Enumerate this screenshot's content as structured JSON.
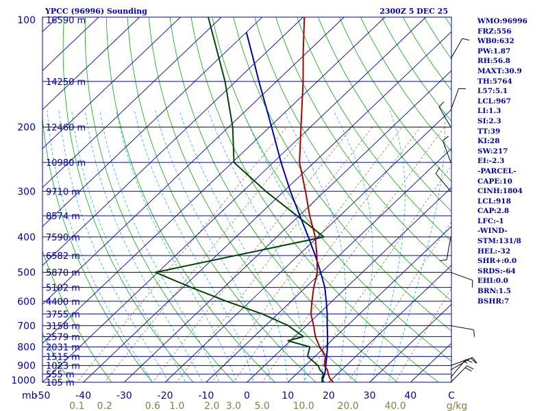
{
  "header": {
    "title": "YPCC (96996) Sounding",
    "time": "2300Z  5 DEC 25"
  },
  "indices": [
    "WMO:96996",
    "FRZ:556",
    "WB0:632",
    "PW:1.87",
    "RH:56.8",
    "MAXT:30.9",
    "TH:5764",
    "L57:5.1",
    "LCL:967",
    "LI:1.3",
    "SI:2.3",
    "TT:39",
    "KI:28",
    "SW:217",
    "EI:-2.3",
    "-PARCEL-",
    "CAPE:10",
    "CINH:1804",
    "LCL:918",
    "CAP:2.8",
    "LFC:-1",
    "-WIND-",
    "STM:131/8",
    "HEL:-32",
    "SHR+:0.0",
    "SRDS:-64",
    "EHI:0.0",
    "BRN:1.5",
    "BSHR:7"
  ],
  "colors": {
    "background": "#ffffff",
    "label_text": "#0000aa",
    "isobar": "#0000aa",
    "isotherm": "#0000aa",
    "dry_adiabat": "#00aa00",
    "moist_adiabat": "#22aaee",
    "mixing_ratio": "#808040",
    "temperature": "#aa0000",
    "dewpoint": "#004400",
    "parcel": "#0000aa",
    "wind_barb": "#000000",
    "mixing_ratio_label": "#808040"
  },
  "chart_data": {
    "type": "skew-t log-p sounding",
    "y_axis": {
      "unit": "mb",
      "range": [
        1000,
        100
      ],
      "scale": "log",
      "tick_labels": [
        "100",
        "200",
        "300",
        "400",
        "500",
        "600",
        "700",
        "800",
        "900",
        "1000"
      ]
    },
    "x_axis": {
      "unit": "C",
      "range": [
        -50,
        50
      ],
      "tick_values": [
        -50,
        -40,
        -30,
        -20,
        -10,
        0,
        10,
        20,
        30,
        40
      ],
      "tick_labels": [
        "-50",
        "-40",
        "-30",
        "-20",
        "-10",
        "0",
        "10",
        "20",
        "30",
        "40"
      ],
      "unit_label": "C",
      "pressure_unit_label": "mb"
    },
    "mixing_ratio_axis": {
      "unit": "g/kg",
      "values": [
        0.1,
        0.2,
        0.6,
        1.0,
        2.0,
        3.0,
        5.0,
        10.0,
        20.0,
        40.0
      ],
      "labels": [
        "0.1",
        "0.2",
        "0.6",
        "1.0",
        "2.0",
        "3.0",
        "5.0",
        "10.0",
        "20.0",
        "40.0"
      ]
    },
    "height_levels": [
      {
        "p": 100,
        "label": "16590 m"
      },
      {
        "p": 150,
        "label": "14250 m"
      },
      {
        "p": 200,
        "label": "12460 m"
      },
      {
        "p": 250,
        "label": "10980 m"
      },
      {
        "p": 300,
        "label": "9710 m"
      },
      {
        "p": 350,
        "label": "8574 m"
      },
      {
        "p": 400,
        "label": "7590 m"
      },
      {
        "p": 450,
        "label": "6582 m"
      },
      {
        "p": 500,
        "label": "5870 m"
      },
      {
        "p": 550,
        "label": "5102 m"
      },
      {
        "p": 600,
        "label": "4400 m"
      },
      {
        "p": 650,
        "label": "3755 m"
      },
      {
        "p": 700,
        "label": "3158 m"
      },
      {
        "p": 750,
        "label": "2579 m"
      },
      {
        "p": 800,
        "label": "2031 m"
      },
      {
        "p": 850,
        "label": "1515 m"
      },
      {
        "p": 900,
        "label": "1023 m"
      },
      {
        "p": 950,
        "label": "555 m"
      },
      {
        "p": 1000,
        "label": "105 m"
      }
    ],
    "temperature": [
      [
        1000,
        21.1
      ],
      [
        975,
        19.2
      ],
      [
        950,
        17.8
      ],
      [
        925,
        16.5
      ],
      [
        900,
        14.6
      ],
      [
        850,
        12.6
      ],
      [
        800,
        8.7
      ],
      [
        750,
        5.0
      ],
      [
        700,
        1.8
      ],
      [
        650,
        -1.9
      ],
      [
        600,
        -4.9
      ],
      [
        550,
        -8.0
      ],
      [
        500,
        -11.0
      ],
      [
        450,
        -15.4
      ],
      [
        400,
        -20.6
      ],
      [
        350,
        -27.4
      ],
      [
        300,
        -34.7
      ],
      [
        250,
        -43.6
      ],
      [
        200,
        -52.3
      ],
      [
        150,
        -63.5
      ],
      [
        125,
        -70.9
      ],
      [
        100,
        -79.7
      ]
    ],
    "dewpoint": [
      [
        1000,
        18.8
      ],
      [
        975,
        17.3
      ],
      [
        950,
        16.7
      ],
      [
        925,
        14.7
      ],
      [
        900,
        13.1
      ],
      [
        850,
        8.2
      ],
      [
        800,
        6.3
      ],
      [
        770,
        -0.6
      ],
      [
        750,
        2.1
      ],
      [
        700,
        -4.4
      ],
      [
        650,
        -13.8
      ],
      [
        600,
        -25.8
      ],
      [
        550,
        -38.0
      ],
      [
        500,
        -50.6
      ],
      [
        400,
        -18.5
      ],
      [
        300,
        -44.4
      ],
      [
        250,
        -59.6
      ],
      [
        200,
        -69.0
      ],
      [
        150,
        -82.6
      ],
      [
        100,
        -103.2
      ]
    ],
    "parcel": [
      [
        1000,
        18.3
      ],
      [
        975,
        17.6
      ],
      [
        950,
        16.9
      ],
      [
        925,
        16.0
      ],
      [
        900,
        15.0
      ],
      [
        850,
        12.9
      ],
      [
        800,
        10.6
      ],
      [
        750,
        8.0
      ],
      [
        700,
        5.1
      ],
      [
        650,
        2.1
      ],
      [
        600,
        -1.4
      ],
      [
        550,
        -5.3
      ],
      [
        500,
        -10.2
      ],
      [
        450,
        -15.8
      ],
      [
        400,
        -22.3
      ],
      [
        350,
        -29.8
      ],
      [
        300,
        -38.4
      ],
      [
        250,
        -48.1
      ],
      [
        200,
        -59.5
      ],
      [
        150,
        -74.3
      ],
      [
        125,
        -83.5
      ],
      [
        110,
        -90.0
      ]
    ],
    "wind_barbs": [
      {
        "p": 1000,
        "dir": 45,
        "spd": 20
      },
      {
        "p": 970,
        "dir": 40,
        "spd": 15
      },
      {
        "p": 925,
        "dir": 60,
        "spd": 10
      },
      {
        "p": 900,
        "dir": 70,
        "spd": 10
      },
      {
        "p": 700,
        "dir": 100,
        "spd": 10
      },
      {
        "p": 500,
        "dir": 110,
        "spd": 10
      },
      {
        "p": 400,
        "dir": 190,
        "spd": 10
      },
      {
        "p": 300,
        "dir": 320,
        "spd": 10
      },
      {
        "p": 250,
        "dir": 340,
        "spd": 10
      },
      {
        "p": 200,
        "dir": 330,
        "spd": 10
      },
      {
        "p": 180,
        "dir": 20,
        "spd": 10
      },
      {
        "p": 130,
        "dir": 30,
        "spd": 10
      }
    ]
  }
}
